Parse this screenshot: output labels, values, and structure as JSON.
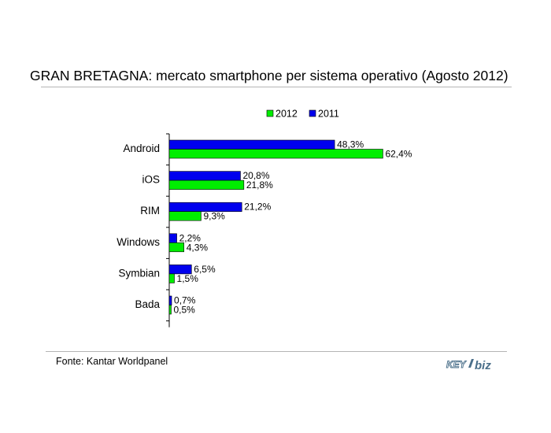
{
  "title": "GRAN BRETAGNA: mercato smartphone per sistema operativo (Agosto 2012)",
  "source": "Fonte: Kantar Worldpanel",
  "logo": {
    "part1": "KEY",
    "part2": "biz"
  },
  "colors": {
    "2012": "#00ee00",
    "2011": "#0000ee"
  },
  "chart_data": {
    "type": "bar",
    "orientation": "horizontal",
    "categories": [
      "Android",
      "iOS",
      "RIM",
      "Windows",
      "Symbian",
      "Bada"
    ],
    "series": [
      {
        "name": "2011",
        "values": [
          48.3,
          20.8,
          21.2,
          2.2,
          6.5,
          0.7
        ],
        "labels": [
          "48,3%",
          "20,8%",
          "21,2%",
          "2,2%",
          "6,5%",
          "0,7%"
        ]
      },
      {
        "name": "2012",
        "values": [
          62.4,
          21.8,
          9.3,
          4.3,
          1.5,
          0.5
        ],
        "labels": [
          "62,4%",
          "21,8%",
          "9,3%",
          "4,3%",
          "1,5%",
          "0,5%"
        ]
      }
    ],
    "legend": {
      "placement": "top",
      "order": [
        "2012",
        "2011"
      ]
    },
    "grid": false
  }
}
